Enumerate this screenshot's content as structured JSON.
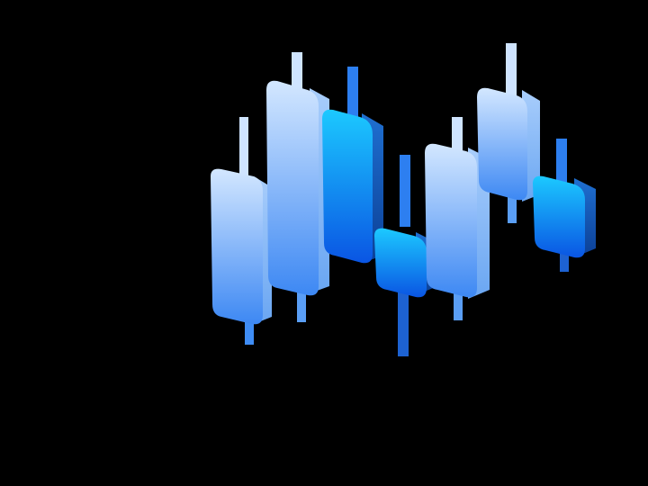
{
  "illustration": {
    "name": "isometric-candlestick-chart",
    "palette": {
      "background": "#000000",
      "light_top": "#c9e2ff",
      "light_bottom": "#3f8df5",
      "light_side": "#8fbdf6",
      "dark_top": "#19c8ff",
      "dark_bottom": "#0a58e6",
      "dark_side": "#0c4fa8",
      "wick_light": "#cfe4ff",
      "wick_dark": "#2d7ff0"
    },
    "candles": [
      {
        "tone": "light",
        "order": 1
      },
      {
        "tone": "light",
        "order": 2
      },
      {
        "tone": "dark",
        "order": 3
      },
      {
        "tone": "dark",
        "order": 4
      },
      {
        "tone": "light",
        "order": 5
      },
      {
        "tone": "light",
        "order": 6
      },
      {
        "tone": "dark",
        "order": 7
      }
    ]
  }
}
